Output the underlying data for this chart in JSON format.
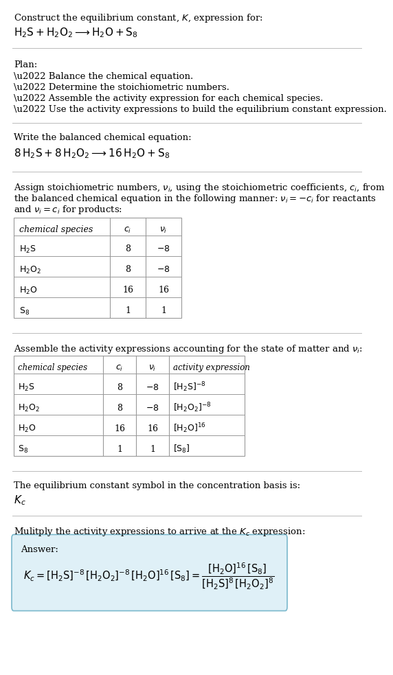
{
  "bg_color": "#ffffff",
  "text_color": "#000000",
  "table_border_color": "#999999",
  "answer_box_facecolor": "#dff0f7",
  "answer_box_edgecolor": "#7ab8cc",
  "separator_color": "#bbbbbb",
  "sections": {
    "title1": "Construct the equilibrium constant, $K$, expression for:",
    "title2": "$\\mathrm{H_2S + H_2O_2 \\longrightarrow H_2O + S_8}$",
    "plan_header": "Plan:",
    "plan_bullets": [
      "\\u2022 Balance the chemical equation.",
      "\\u2022 Determine the stoichiometric numbers.",
      "\\u2022 Assemble the activity expression for each chemical species.",
      "\\u2022 Use the activity expressions to build the equilibrium constant expression."
    ],
    "balanced_header": "Write the balanced chemical equation:",
    "balanced_eq": "$8\\,\\mathrm{H_2S} + 8\\,\\mathrm{H_2O_2} \\longrightarrow 16\\,\\mathrm{H_2O} + \\mathrm{S_8}$",
    "stoich_header_lines": [
      "Assign stoichiometric numbers, $\\nu_i$, using the stoichiometric coefficients, $c_i$, from",
      "the balanced chemical equation in the following manner: $\\nu_i = -c_i$ for reactants",
      "and $\\nu_i = c_i$ for products:"
    ],
    "table1_rows": [
      [
        "$\\mathrm{H_2S}$",
        "8",
        "$-8$"
      ],
      [
        "$\\mathrm{H_2O_2}$",
        "8",
        "$-8$"
      ],
      [
        "$\\mathrm{H_2O}$",
        "16",
        "16"
      ],
      [
        "$\\mathrm{S_8}$",
        "1",
        "1"
      ]
    ],
    "activity_header": "Assemble the activity expressions accounting for the state of matter and $\\nu_i$:",
    "table2_rows": [
      [
        "$\\mathrm{H_2S}$",
        "8",
        "$-8$",
        "$[\\mathrm{H_2S}]^{-8}$"
      ],
      [
        "$\\mathrm{H_2O_2}$",
        "8",
        "$-8$",
        "$[\\mathrm{H_2O_2}]^{-8}$"
      ],
      [
        "$\\mathrm{H_2O}$",
        "16",
        "16",
        "$[\\mathrm{H_2O}]^{16}$"
      ],
      [
        "$\\mathrm{S_8}$",
        "1",
        "1",
        "$[\\mathrm{S_8}]$"
      ]
    ],
    "kc_header": "The equilibrium constant symbol in the concentration basis is:",
    "kc_symbol": "$K_c$",
    "multiply_header": "Mulitply the activity expressions to arrive at the $K_c$ expression:",
    "answer_label": "Answer:",
    "answer_eq": "$K_c = [\\mathrm{H_2S}]^{-8}\\,[\\mathrm{H_2O_2}]^{-8}\\,[\\mathrm{H_2O}]^{16}\\,[\\mathrm{S_8}] = \\dfrac{[\\mathrm{H_2O}]^{16}\\,[\\mathrm{S_8}]}{[\\mathrm{H_2S}]^{8}\\,[\\mathrm{H_2O_2}]^{8}}$"
  }
}
